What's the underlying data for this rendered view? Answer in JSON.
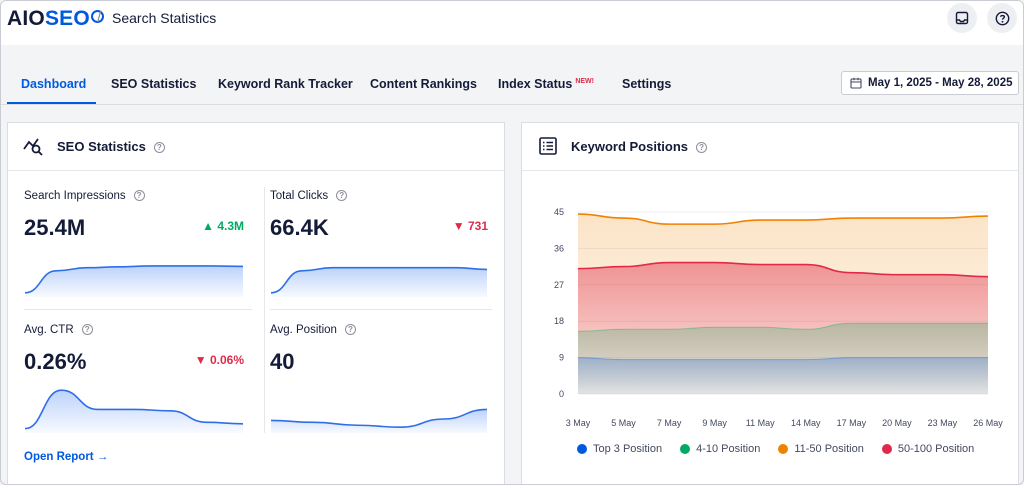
{
  "header": {
    "logo_aio": "AIO",
    "logo_seo": "SEO",
    "separator": "/",
    "breadcrumb": "Search Statistics",
    "icons": [
      "inbox-icon",
      "help-circle-icon"
    ]
  },
  "tabs": [
    {
      "label": "Dashboard",
      "active": true
    },
    {
      "label": "SEO Statistics"
    },
    {
      "label": "Keyword Rank Tracker"
    },
    {
      "label": "Content Rankings"
    },
    {
      "label": "Index Status",
      "badge": "NEW!"
    },
    {
      "label": "Settings"
    }
  ],
  "date_range": "May 1, 2025 - May 28, 2025",
  "seo_statistics": {
    "title": "SEO Statistics",
    "help": "?",
    "metrics": [
      {
        "label": "Search Impressions",
        "value": "25.4M",
        "delta": "4.3M",
        "trend": "up",
        "spark": [
          0.05,
          0.55,
          0.62,
          0.64,
          0.66,
          0.66,
          0.66,
          0.65
        ]
      },
      {
        "label": "Total Clicks",
        "value": "66.4K",
        "delta": "731",
        "trend": "down",
        "spark": [
          0.05,
          0.55,
          0.62,
          0.62,
          0.62,
          0.62,
          0.62,
          0.58
        ]
      },
      {
        "label": "Avg. CTR",
        "value": "0.26%",
        "delta": "0.06%",
        "trend": "down",
        "spark": [
          0.05,
          0.85,
          0.45,
          0.45,
          0.42,
          0.18,
          0.15
        ]
      },
      {
        "label": "Avg. Position",
        "value": "40",
        "delta": "",
        "trend": "none",
        "spark": [
          0.22,
          0.18,
          0.12,
          0.08,
          0.25,
          0.45
        ]
      }
    ],
    "open_report": "Open Report →"
  },
  "keyword_positions": {
    "title": "Keyword Positions",
    "help": "?"
  },
  "chart_data": {
    "type": "area",
    "x": [
      "3 May",
      "5 May",
      "7 May",
      "9 May",
      "11 May",
      "14 May",
      "17 May",
      "20 May",
      "23 May",
      "26 May"
    ],
    "yticks": [
      0,
      9,
      18,
      27,
      36,
      45
    ],
    "ylim": [
      0,
      45
    ],
    "series": [
      {
        "name": "Top 3 Position",
        "color": "#005ae0",
        "values": [
          9,
          8.5,
          8.5,
          8.5,
          8.5,
          8.5,
          9,
          9,
          9,
          9
        ]
      },
      {
        "name": "4-10 Position",
        "color": "#00aa63",
        "values": [
          15.5,
          16,
          16,
          16.5,
          16.5,
          16,
          17.5,
          17.5,
          17.5,
          17.5
        ]
      },
      {
        "name": "11-50 Position",
        "color": "#f18200",
        "values": [
          44.5,
          43.5,
          42,
          42,
          43,
          43,
          43.5,
          43.5,
          43.5,
          44
        ]
      },
      {
        "name": "50-100 Position",
        "color": "#df2a4a",
        "values": [
          31,
          31.5,
          32.5,
          32.5,
          32,
          32,
          30,
          29.5,
          29.5,
          29
        ]
      }
    ]
  }
}
